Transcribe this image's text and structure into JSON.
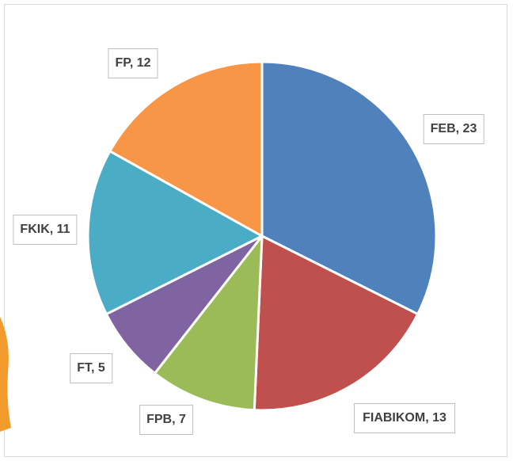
{
  "chart_data": {
    "type": "pie",
    "values": [
      23,
      13,
      7,
      5,
      11,
      12
    ],
    "value_labels": [
      "FEB, 23",
      "FIABIKOM, 13",
      "FPB, 7",
      "FT, 5",
      "FKIK, 11",
      "FP, 12"
    ],
    "colors": [
      "#4f81bd",
      "#c0504d",
      "#9bbb59",
      "#8064a2",
      "#4bacc6",
      "#f79646"
    ]
  }
}
